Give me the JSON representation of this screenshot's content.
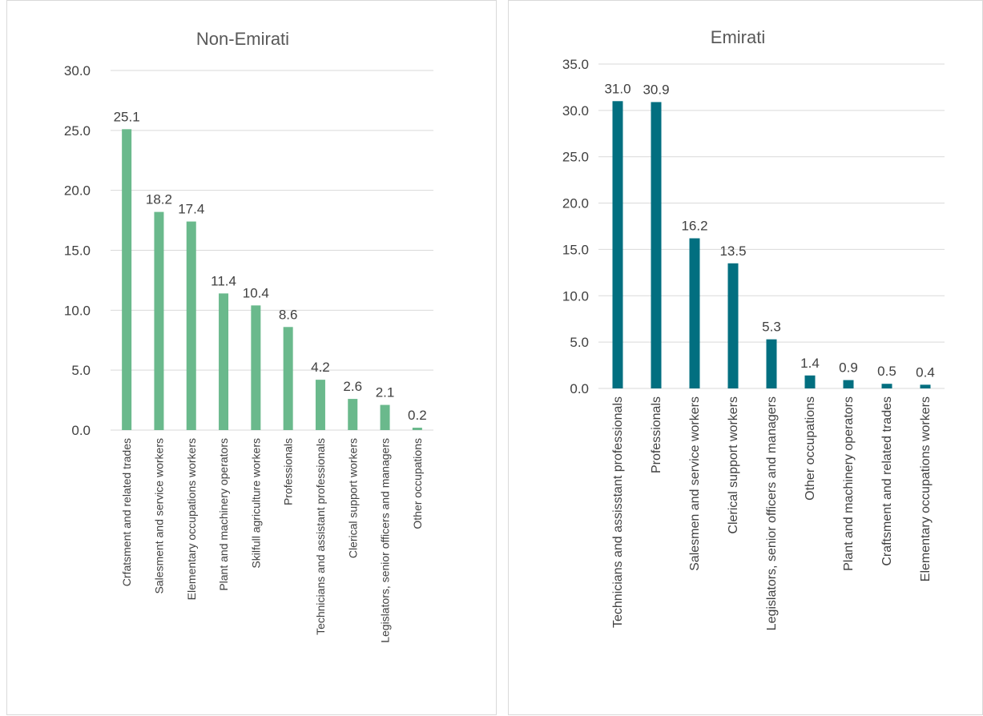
{
  "chart_data": [
    {
      "type": "bar",
      "title": "Non-Emirati",
      "xlabel": "",
      "ylabel": "",
      "ylim": [
        0,
        30
      ],
      "yticks": [
        "0.0",
        "5.0",
        "10.0",
        "15.0",
        "20.0",
        "25.0",
        "30.0"
      ],
      "grid": true,
      "legend": "none",
      "bar_color": "#6ab98c",
      "categories": [
        "Crfatsment and related trades",
        "Salesment and service workers",
        "Elementary occupations workers",
        "Plant and machinery operators",
        "Skilfull agriculture workers",
        "Professionals",
        "Technicians and assistant professionals",
        "Clerical support workers",
        "Legislators, senior officers and managers",
        "Other occupations"
      ],
      "values": [
        25.1,
        18.2,
        17.4,
        11.4,
        10.4,
        8.6,
        4.2,
        2.6,
        2.1,
        0.2
      ],
      "data_labels": [
        "25.1",
        "18.2",
        "17.4",
        "11.4",
        "10.4",
        "8.6",
        "4.2",
        "2.6",
        "2.1",
        "0.2"
      ]
    },
    {
      "type": "bar",
      "title": "Emirati",
      "xlabel": "",
      "ylabel": "",
      "ylim": [
        0,
        35
      ],
      "yticks": [
        "0.0",
        "5.0",
        "10.0",
        "15.0",
        "20.0",
        "25.0",
        "30.0",
        "35.0"
      ],
      "grid": true,
      "legend": "none",
      "bar_color": "#026f80",
      "categories": [
        "Technicians and assisstant professionals",
        "Professionals",
        "Salesmen and service workers",
        "Clerical support workers",
        "Legislators, senior officers and managers",
        "Other occupations",
        "Plant and machinery operators",
        "Craftsment and related trades",
        "Elementary occupations workers"
      ],
      "values": [
        31.0,
        30.9,
        16.2,
        13.5,
        5.3,
        1.4,
        0.9,
        0.5,
        0.4
      ],
      "data_labels": [
        "31.0",
        "30.9",
        "16.2",
        "13.5",
        "5.3",
        "1.4",
        "0.9",
        "0.5",
        "0.4"
      ]
    }
  ]
}
